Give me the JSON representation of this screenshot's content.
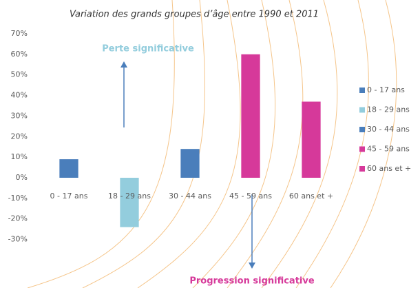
{
  "chart_data": {
    "type": "bar",
    "title": "Variation des grands groupes d’âge entre 1990 et 2011",
    "categories": [
      "0 - 17 ans",
      "18 - 29 ans",
      "30 - 44 ans",
      "45 - 59 ans",
      "60 ans et +"
    ],
    "values": [
      9,
      -24,
      14,
      60,
      37
    ],
    "colors": [
      "#4a7ebb",
      "#93cddd",
      "#4a7ebb",
      "#d6399a",
      "#d6399a"
    ],
    "ylim": [
      -35,
      70
    ],
    "yticks": [
      {
        "value": -30,
        "label": "-30%"
      },
      {
        "value": -20,
        "label": "-20%"
      },
      {
        "value": -10,
        "label": "-10%"
      },
      {
        "value": 0,
        "label": "0%"
      },
      {
        "value": 10,
        "label": "10%"
      },
      {
        "value": 20,
        "label": "20%"
      },
      {
        "value": 30,
        "label": "30%"
      },
      {
        "value": 40,
        "label": "40%"
      },
      {
        "value": 50,
        "label": "50%"
      },
      {
        "value": 60,
        "label": "60%"
      },
      {
        "value": 70,
        "label": "70%"
      }
    ],
    "grid": false,
    "legend": "right",
    "annotations": [
      {
        "text": "Perte significative",
        "color": "#93cddd"
      },
      {
        "text": "Progression significative",
        "color": "#d6399a"
      }
    ]
  }
}
